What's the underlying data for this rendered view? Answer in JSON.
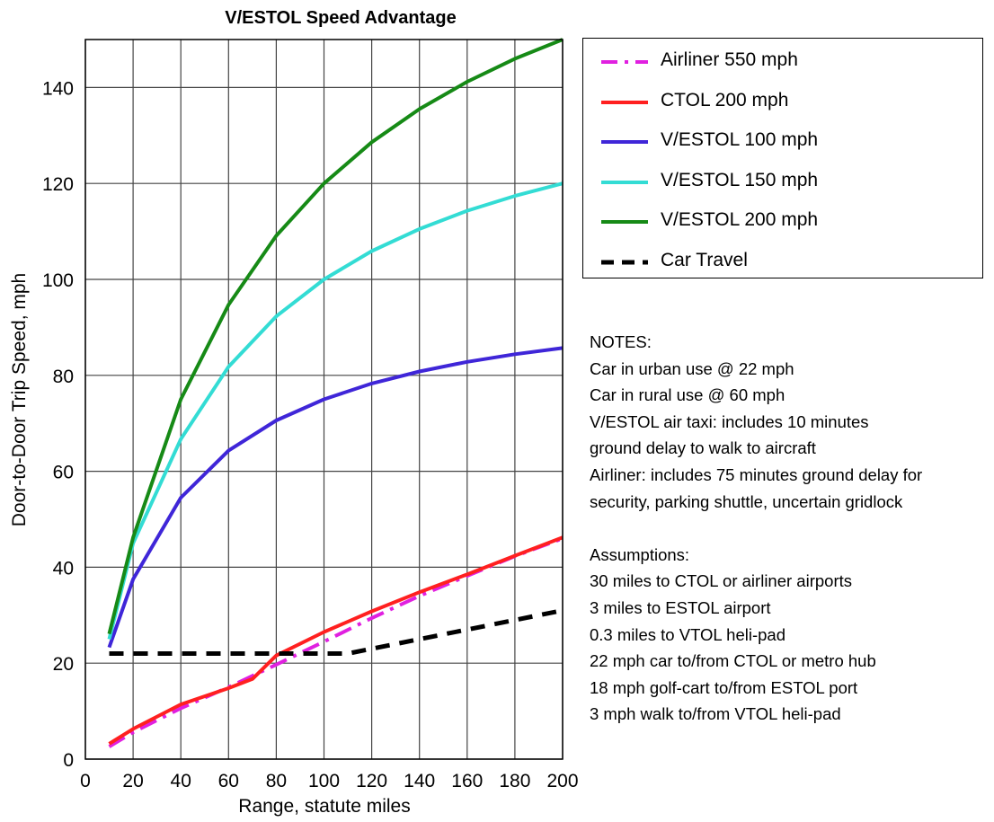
{
  "chart_data": {
    "type": "line",
    "title": "V/ESTOL Speed Advantage",
    "xlabel": "Range, statute miles",
    "ylabel": "Door-to-Door Trip Speed, mph",
    "xlim": [
      0,
      200
    ],
    "ylim": [
      0,
      150
    ],
    "x_ticks": [
      0,
      20,
      40,
      60,
      80,
      100,
      120,
      140,
      160,
      180,
      200
    ],
    "y_ticks": [
      0,
      20,
      40,
      60,
      80,
      100,
      120,
      140
    ],
    "grid": true,
    "legend_position": "right-top",
    "series": [
      {
        "name": "Airliner 550 mph",
        "color": "#e020e0",
        "dash": "dash-dot",
        "points": [
          [
            10,
            2.6
          ],
          [
            20,
            5.6
          ],
          [
            40,
            10.6
          ],
          [
            60,
            15
          ],
          [
            80,
            19.7
          ],
          [
            100,
            24.5
          ],
          [
            120,
            29.4
          ],
          [
            140,
            34
          ],
          [
            160,
            38.2
          ],
          [
            180,
            42.3
          ],
          [
            200,
            46
          ]
        ]
      },
      {
        "name": "CTOL 200 mph",
        "color": "#ff2020",
        "dash": "solid",
        "points": [
          [
            10,
            3.2
          ],
          [
            20,
            6.3
          ],
          [
            40,
            11.4
          ],
          [
            60,
            14.8
          ],
          [
            70,
            16.7
          ],
          [
            80,
            21.6
          ],
          [
            100,
            26.5
          ],
          [
            120,
            30.8
          ],
          [
            140,
            34.8
          ],
          [
            160,
            38.5
          ],
          [
            180,
            42.4
          ],
          [
            200,
            46.2
          ]
        ]
      },
      {
        "name": "V/ESTOL 100 mph",
        "color": "#3f26d8",
        "dash": "solid",
        "points": [
          [
            10,
            23.3
          ],
          [
            20,
            37.5
          ],
          [
            40,
            54.5
          ],
          [
            60,
            64.3
          ],
          [
            80,
            70.6
          ],
          [
            100,
            75
          ],
          [
            120,
            78.3
          ],
          [
            140,
            80.8
          ],
          [
            160,
            82.8
          ],
          [
            180,
            84.4
          ],
          [
            200,
            85.7
          ]
        ]
      },
      {
        "name": "V/ESTOL 150 mph",
        "color": "#33dcd4",
        "dash": "solid",
        "points": [
          [
            10,
            25
          ],
          [
            20,
            45
          ],
          [
            40,
            66.7
          ],
          [
            60,
            81.8
          ],
          [
            80,
            92.3
          ],
          [
            100,
            100
          ],
          [
            120,
            105.9
          ],
          [
            140,
            110.5
          ],
          [
            160,
            114.3
          ],
          [
            180,
            117.4
          ],
          [
            200,
            120
          ]
        ]
      },
      {
        "name": "V/ESTOL 200 mph",
        "color": "#168a16",
        "dash": "solid",
        "points": [
          [
            10,
            26.1
          ],
          [
            20,
            46.2
          ],
          [
            40,
            75
          ],
          [
            60,
            94.7
          ],
          [
            80,
            109.1
          ],
          [
            100,
            120
          ],
          [
            120,
            128.6
          ],
          [
            140,
            135.5
          ],
          [
            160,
            141.2
          ],
          [
            180,
            146
          ],
          [
            200,
            150
          ]
        ]
      },
      {
        "name": "Car Travel",
        "color": "#000000",
        "dash": "dashed",
        "points": [
          [
            10,
            22
          ],
          [
            110,
            22
          ],
          [
            200,
            31
          ]
        ]
      }
    ]
  },
  "notes": [
    "NOTES:",
    "Car in urban use @  22 mph",
    "Car in rural use @ 60 mph",
    "V/ESTOL air taxi: includes 10 minutes",
    "ground delay to walk to aircraft",
    "Airliner: includes 75 minutes ground delay for",
    "security, parking shuttle, uncertain gridlock",
    "",
    "Assumptions:",
    "30 miles to CTOL or airliner airports",
    "3 miles to ESTOL airport",
    "0.3 miles to VTOL heli-pad",
    "22 mph car to/from CTOL or metro hub",
    "18 mph golf-cart to/from ESTOL port",
    "3 mph walk to/from VTOL heli-pad"
  ]
}
